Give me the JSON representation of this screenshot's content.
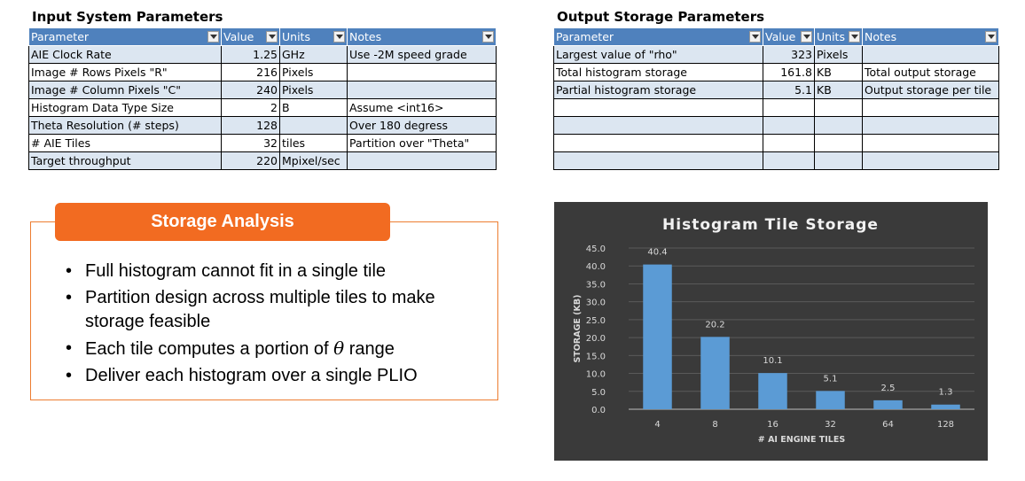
{
  "input_table": {
    "title": "Input System Parameters",
    "headers": [
      "Parameter",
      "Value",
      "Units",
      "Notes"
    ],
    "rows": [
      {
        "parameter": "AIE Clock Rate",
        "value": "1.25",
        "units": "GHz",
        "notes": "Use -2M speed grade"
      },
      {
        "parameter": "Image # Rows Pixels \"R\"",
        "value": "216",
        "units": "Pixels",
        "notes": ""
      },
      {
        "parameter": "Image # Column Pixels \"C\"",
        "value": "240",
        "units": "Pixels",
        "notes": ""
      },
      {
        "parameter": "Histogram Data Type Size",
        "value": "2",
        "units": "B",
        "notes": "Assume <int16>"
      },
      {
        "parameter": "Theta Resolution (# steps)",
        "value": "128",
        "units": "",
        "notes": "Over 180 degress"
      },
      {
        "parameter": "# AIE Tiles",
        "value": "32",
        "units": "tiles",
        "notes": "Partition over \"Theta\""
      },
      {
        "parameter": "Target throughput",
        "value": "220",
        "units": "Mpixel/sec",
        "notes": ""
      }
    ]
  },
  "output_table": {
    "title": "Output Storage Parameters",
    "headers": [
      "Parameter",
      "Value",
      "Units",
      "Notes"
    ],
    "rows": [
      {
        "parameter": "Largest value of \"rho\"",
        "value": "323",
        "units": "Pixels",
        "notes": ""
      },
      {
        "parameter": "Total histogram storage",
        "value": "161.8",
        "units": "KB",
        "notes": "Total output storage"
      },
      {
        "parameter": "Partial histogram storage",
        "value": "5.1",
        "units": "KB",
        "notes": "Output storage per tile"
      },
      {
        "parameter": "",
        "value": "",
        "units": "",
        "notes": ""
      },
      {
        "parameter": "",
        "value": "",
        "units": "",
        "notes": ""
      },
      {
        "parameter": "",
        "value": "",
        "units": "",
        "notes": ""
      },
      {
        "parameter": "",
        "value": "",
        "units": "",
        "notes": ""
      }
    ]
  },
  "storage_analysis": {
    "title": "Storage Analysis",
    "bullets": [
      "Full histogram cannot fit in a single tile",
      "Partition design across multiple tiles to make storage feasible",
      "Each tile computes a portion of θ range",
      "Deliver each histogram over a single PLIO"
    ]
  },
  "colors": {
    "table_header": "#4f81bd",
    "table_alt_row": "#dce6f1",
    "callout_orange": "#f26b21",
    "chart_bg": "#3a3a3a",
    "bar": "#5b9bd5"
  },
  "chart_data": {
    "type": "bar",
    "title": "Histogram Tile Storage",
    "xlabel": "# AI ENGINE TILES",
    "ylabel": "STORAGE (KB)",
    "categories": [
      "4",
      "8",
      "16",
      "32",
      "64",
      "128"
    ],
    "values": [
      40.4,
      20.2,
      10.1,
      5.1,
      2.5,
      1.3
    ],
    "labels": [
      "40.4",
      "20.2",
      "10.1",
      "5.1",
      "2.5",
      "1.3"
    ],
    "ylim": [
      0,
      45
    ],
    "yticks": [
      "0.0",
      "5.0",
      "10.0",
      "15.0",
      "20.0",
      "25.0",
      "30.0",
      "35.0",
      "40.0",
      "45.0"
    ],
    "grid": true
  }
}
